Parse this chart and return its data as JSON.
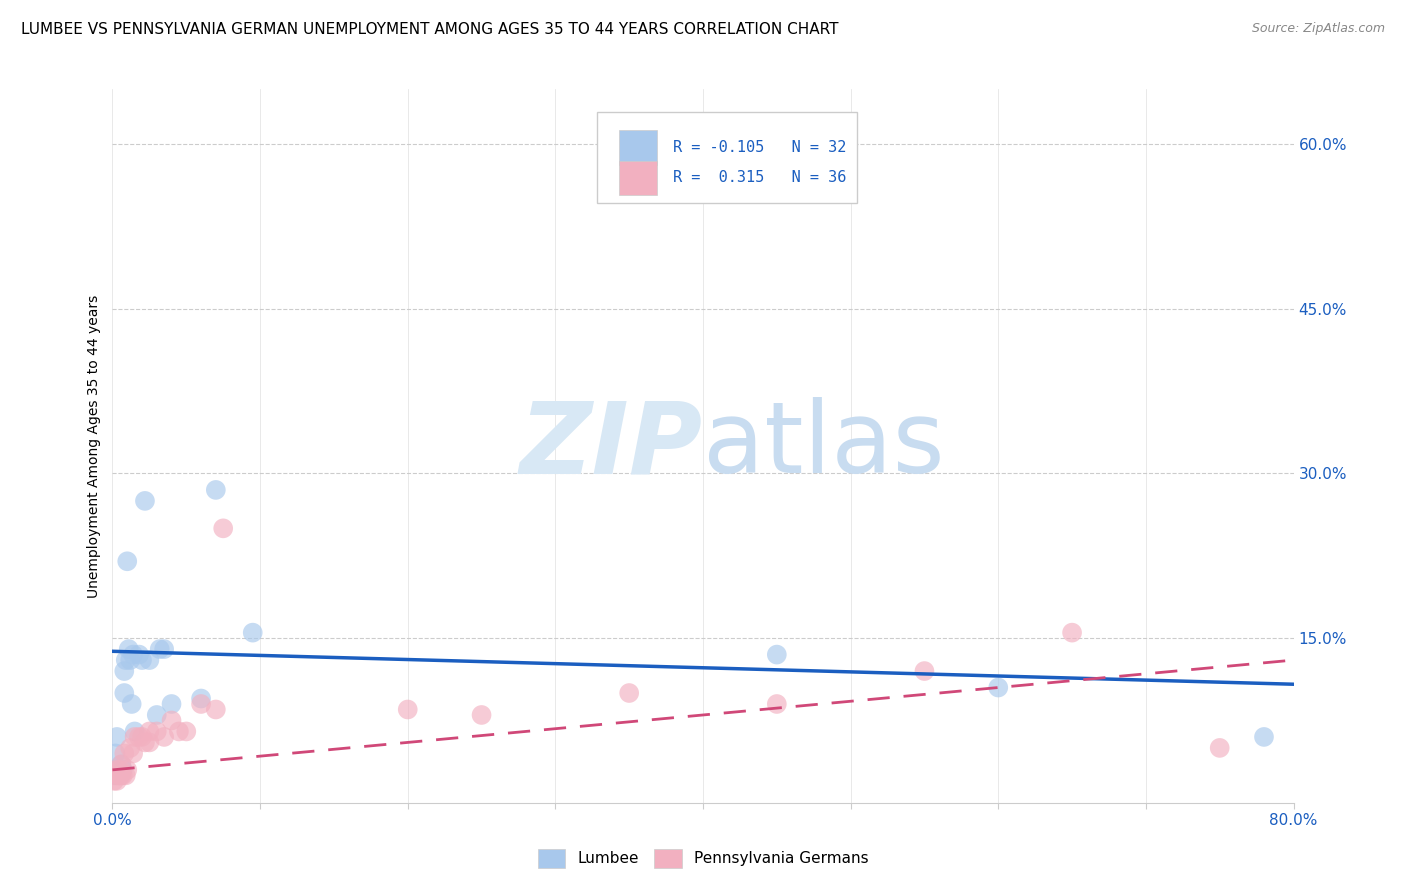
{
  "title": "LUMBEE VS PENNSYLVANIA GERMAN UNEMPLOYMENT AMONG AGES 35 TO 44 YEARS CORRELATION CHART",
  "source": "Source: ZipAtlas.com",
  "ylabel": "Unemployment Among Ages 35 to 44 years",
  "xlim": [
    0.0,
    0.8
  ],
  "ylim": [
    0.0,
    0.65
  ],
  "yticks_right": [
    0.15,
    0.3,
    0.45,
    0.6
  ],
  "ytick_labels_right": [
    "15.0%",
    "30.0%",
    "45.0%",
    "60.0%"
  ],
  "xtick_positions": [
    0.0,
    0.1,
    0.2,
    0.3,
    0.4,
    0.5,
    0.6,
    0.7,
    0.8
  ],
  "lumbee_R": -0.105,
  "lumbee_N": 32,
  "pennger_R": 0.315,
  "pennger_N": 36,
  "lumbee_color": "#A8C8EC",
  "lumbee_line_color": "#1B5EC0",
  "pennger_color": "#F2B0C0",
  "pennger_line_color": "#D04878",
  "lumbee_x": [
    0.001,
    0.002,
    0.002,
    0.003,
    0.003,
    0.004,
    0.005,
    0.006,
    0.007,
    0.008,
    0.008,
    0.009,
    0.01,
    0.011,
    0.012,
    0.013,
    0.014,
    0.015,
    0.018,
    0.02,
    0.022,
    0.025,
    0.03,
    0.032,
    0.035,
    0.04,
    0.06,
    0.07,
    0.095,
    0.45,
    0.6,
    0.78
  ],
  "lumbee_y": [
    0.025,
    0.03,
    0.045,
    0.025,
    0.06,
    0.03,
    0.025,
    0.035,
    0.03,
    0.12,
    0.1,
    0.13,
    0.22,
    0.14,
    0.13,
    0.09,
    0.135,
    0.065,
    0.135,
    0.13,
    0.275,
    0.13,
    0.08,
    0.14,
    0.14,
    0.09,
    0.095,
    0.285,
    0.155,
    0.135,
    0.105,
    0.06
  ],
  "pennger_x": [
    0.001,
    0.002,
    0.003,
    0.003,
    0.004,
    0.005,
    0.005,
    0.006,
    0.006,
    0.007,
    0.008,
    0.009,
    0.01,
    0.012,
    0.014,
    0.015,
    0.018,
    0.02,
    0.022,
    0.025,
    0.025,
    0.03,
    0.035,
    0.04,
    0.045,
    0.05,
    0.06,
    0.07,
    0.075,
    0.2,
    0.25,
    0.35,
    0.45,
    0.55,
    0.65,
    0.75
  ],
  "pennger_y": [
    0.02,
    0.025,
    0.03,
    0.02,
    0.025,
    0.03,
    0.025,
    0.035,
    0.025,
    0.025,
    0.045,
    0.025,
    0.03,
    0.05,
    0.045,
    0.06,
    0.06,
    0.06,
    0.055,
    0.065,
    0.055,
    0.065,
    0.06,
    0.075,
    0.065,
    0.065,
    0.09,
    0.085,
    0.25,
    0.085,
    0.08,
    0.1,
    0.09,
    0.12,
    0.155,
    0.05
  ],
  "grid_color": "#CCCCCC",
  "background_color": "#FFFFFF",
  "title_fontsize": 11,
  "axis_label_fontsize": 10,
  "tick_fontsize": 11
}
